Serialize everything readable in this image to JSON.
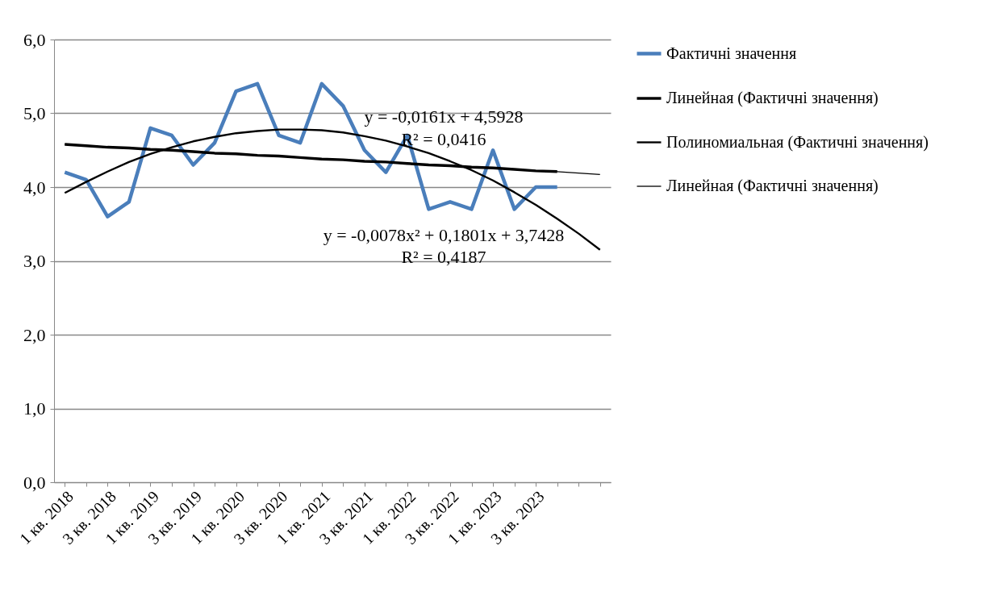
{
  "chart_data": {
    "type": "line",
    "categories": [
      "1 кв. 2018",
      null,
      "3 кв. 2018",
      null,
      "1 кв. 2019",
      null,
      "3 кв. 2019",
      null,
      "1 кв. 2020",
      null,
      "3 кв. 2020",
      null,
      "1 кв. 2021",
      null,
      "3 кв. 2021",
      null,
      "1 кв. 2022",
      null,
      "3 кв. 2022",
      null,
      "1 кв. 2023",
      null,
      "3 кв. 2023",
      null,
      null,
      null
    ],
    "series": [
      {
        "name": "Фактичні значення",
        "color": "#4a7ebb",
        "values": [
          4.2,
          4.1,
          3.6,
          3.8,
          4.8,
          4.7,
          4.3,
          4.6,
          5.3,
          5.4,
          4.7,
          4.6,
          5.4,
          5.1,
          4.5,
          4.2,
          4.7,
          3.7,
          3.8,
          3.7,
          4.5,
          3.7,
          4.0,
          4.0,
          null,
          null
        ]
      },
      {
        "name": "Линейная (Фактичні значення)",
        "color": "#000000",
        "values": [
          4.58,
          4.56,
          4.54,
          4.53,
          4.51,
          4.5,
          4.48,
          4.46,
          4.45,
          4.43,
          4.42,
          4.4,
          4.38,
          4.37,
          4.35,
          4.34,
          4.32,
          4.3,
          4.29,
          4.27,
          4.26,
          4.24,
          4.22,
          4.21,
          null,
          null
        ]
      },
      {
        "name": "Полиномиальная (Фактичні значення)",
        "color": "#000000",
        "values": [
          3.92,
          4.07,
          4.21,
          4.34,
          4.45,
          4.54,
          4.62,
          4.68,
          4.73,
          4.76,
          4.78,
          4.78,
          4.77,
          4.74,
          4.69,
          4.63,
          4.55,
          4.46,
          4.35,
          4.23,
          4.09,
          3.93,
          3.76,
          3.57,
          3.37,
          3.15
        ]
      },
      {
        "name": "Линейная (Фактичні значення)",
        "color": "#000000",
        "values": [
          4.58,
          4.56,
          4.54,
          4.53,
          4.51,
          4.5,
          4.48,
          4.46,
          4.45,
          4.43,
          4.42,
          4.4,
          4.38,
          4.37,
          4.35,
          4.34,
          4.32,
          4.3,
          4.29,
          4.27,
          4.26,
          4.24,
          4.22,
          4.21,
          4.19,
          4.17
        ]
      }
    ],
    "ylim": [
      0,
      6
    ],
    "yticks": [
      {
        "value": 0,
        "label": "0,0"
      },
      {
        "value": 1,
        "label": "1,0"
      },
      {
        "value": 2,
        "label": "2,0"
      },
      {
        "value": 3,
        "label": "3,0"
      },
      {
        "value": 4,
        "label": "4,0"
      },
      {
        "value": 5,
        "label": "5,0"
      },
      {
        "value": 6,
        "label": "6,0"
      }
    ],
    "grid": "y",
    "legend": "right",
    "marker": "none",
    "annotations": [
      "y = -0,0161x + 4,5928",
      "R² = 0,0416",
      "y = -0,0078x² + 0,1801x + 3,7428",
      "R² = 0,4187"
    ]
  }
}
